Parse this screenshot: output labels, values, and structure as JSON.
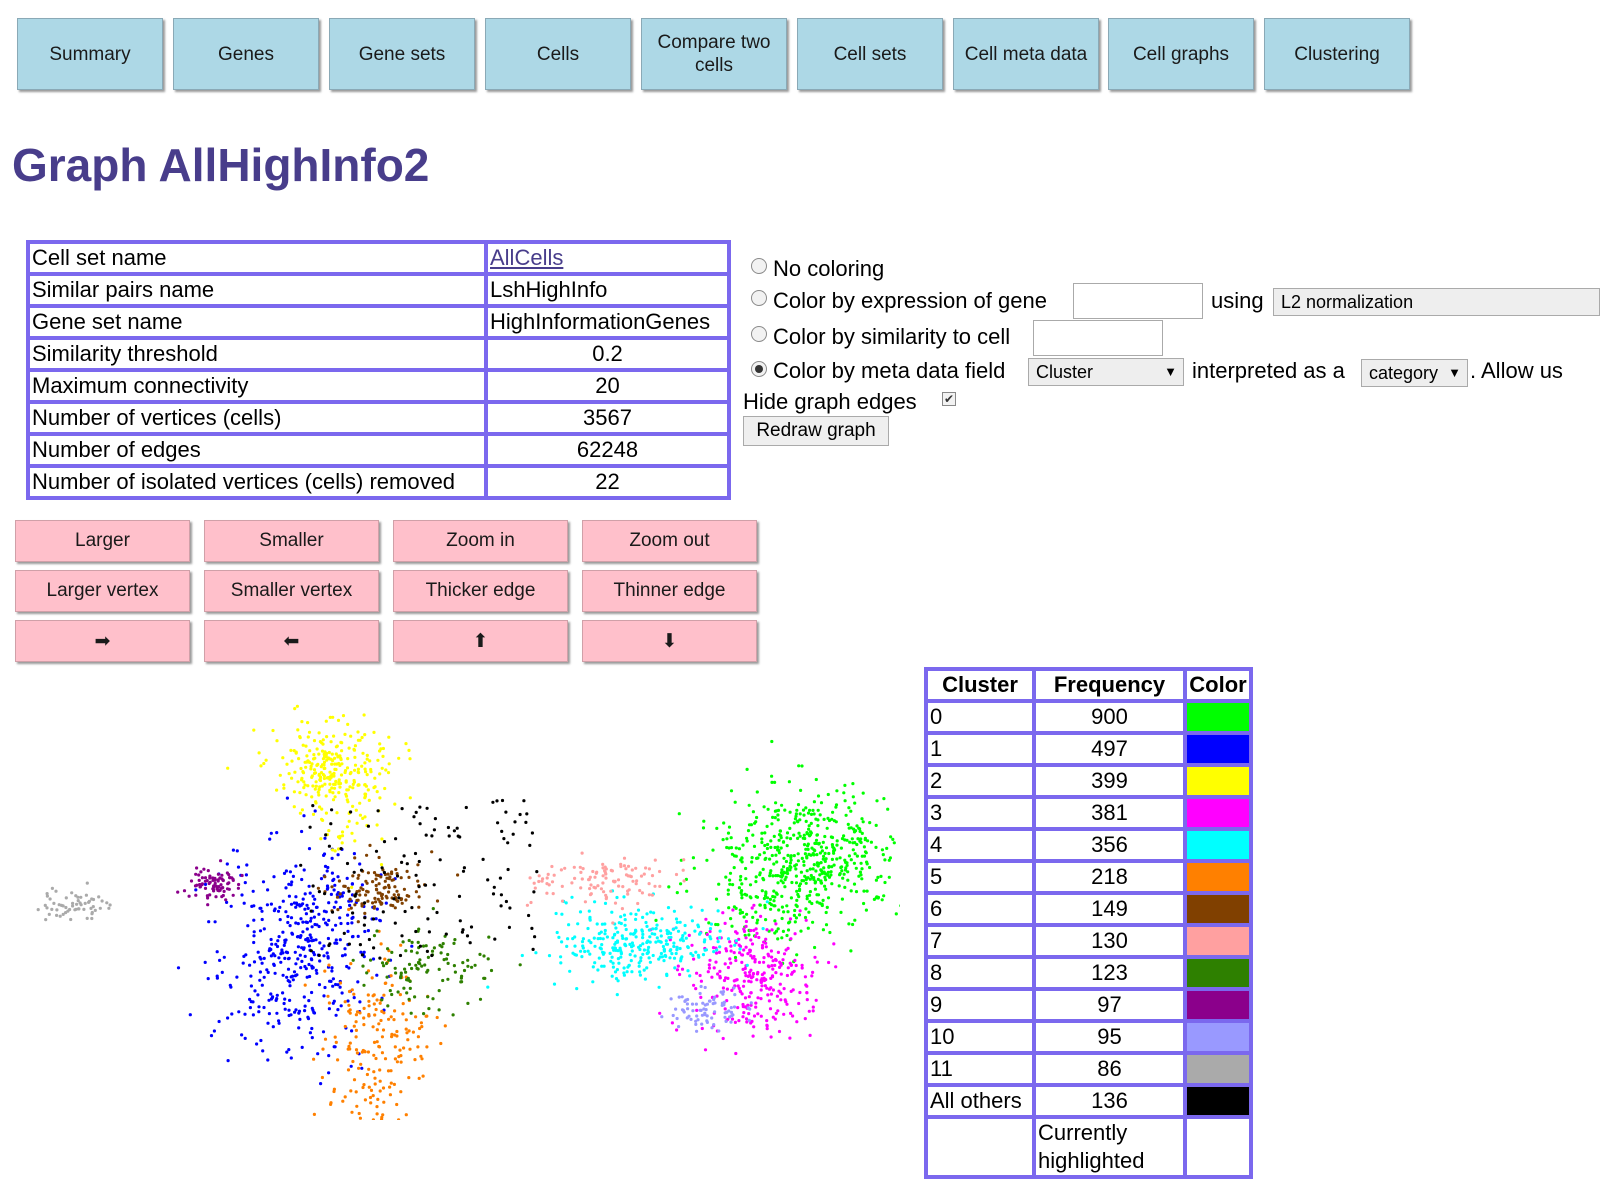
{
  "nav": [
    {
      "label": "Summary"
    },
    {
      "label": "Genes"
    },
    {
      "label": "Gene sets"
    },
    {
      "label": "Cells"
    },
    {
      "label": "Compare two cells"
    },
    {
      "label": "Cell sets"
    },
    {
      "label": "Cell meta data"
    },
    {
      "label": "Cell graphs"
    },
    {
      "label": "Clustering"
    }
  ],
  "page_title": "Graph AllHighInfo2",
  "info": [
    {
      "label": "Cell set name",
      "value": "AllCells",
      "link": true
    },
    {
      "label": "Similar pairs name",
      "value": "LshHighInfo"
    },
    {
      "label": "Gene set name",
      "value": "HighInformationGenes"
    },
    {
      "label": "Similarity threshold",
      "value": "0.2"
    },
    {
      "label": "Maximum connectivity",
      "value": "20"
    },
    {
      "label": "Number of vertices (cells)",
      "value": "3567"
    },
    {
      "label": "Number of edges",
      "value": "62248"
    },
    {
      "label": "Number of isolated vertices (cells) removed",
      "value": "22"
    }
  ],
  "coloring": {
    "no_coloring": "No coloring",
    "by_gene": "Color by expression of gene",
    "using": "using",
    "normalization": "L2 normalization",
    "by_similarity": "Color by similarity to cell",
    "by_meta": "Color by meta data field",
    "meta_field": "Cluster",
    "interpreted_as": "interpreted as a",
    "interpretation": "category",
    "allow": ". Allow us",
    "selected": "by_meta",
    "hide_edges": "Hide graph edges",
    "hide_edges_checked": true,
    "redraw": "Redraw graph"
  },
  "controls": [
    {
      "label": "Larger"
    },
    {
      "label": "Smaller"
    },
    {
      "label": "Zoom in"
    },
    {
      "label": "Zoom out"
    },
    {
      "label": "Larger vertex"
    },
    {
      "label": "Smaller vertex"
    },
    {
      "label": "Thicker edge"
    },
    {
      "label": "Thinner edge"
    },
    {
      "label": "➡",
      "icon": "right-arrow-icon"
    },
    {
      "label": "⬅",
      "icon": "left-arrow-icon"
    },
    {
      "label": "⬆",
      "icon": "up-arrow-icon"
    },
    {
      "label": "⬇",
      "icon": "down-arrow-icon"
    }
  ],
  "cluster_table": {
    "headers": [
      "Cluster",
      "Frequency",
      "Color"
    ],
    "rows": [
      {
        "cluster": "0",
        "frequency": "900",
        "color": "#00ff00"
      },
      {
        "cluster": "1",
        "frequency": "497",
        "color": "#0000ff"
      },
      {
        "cluster": "2",
        "frequency": "399",
        "color": "#ffff00"
      },
      {
        "cluster": "3",
        "frequency": "381",
        "color": "#ff00ff"
      },
      {
        "cluster": "4",
        "frequency": "356",
        "color": "#00ffff"
      },
      {
        "cluster": "5",
        "frequency": "218",
        "color": "#ff8000"
      },
      {
        "cluster": "6",
        "frequency": "149",
        "color": "#804000"
      },
      {
        "cluster": "7",
        "frequency": "130",
        "color": "#ffa0a0"
      },
      {
        "cluster": "8",
        "frequency": "123",
        "color": "#2e8000"
      },
      {
        "cluster": "9",
        "frequency": "97",
        "color": "#8b008b"
      },
      {
        "cluster": "10",
        "frequency": "95",
        "color": "#9999ff"
      },
      {
        "cluster": "11",
        "frequency": "86",
        "color": "#aaaaaa"
      },
      {
        "cluster": "All others",
        "frequency": "136",
        "color": "#000000"
      }
    ],
    "footer": "Currently highlighted"
  },
  "colors": {
    "nav_bg": "#add8e6",
    "title": "#483d8b",
    "table_border": "#7b68ee",
    "control_bg": "#ffc0cb"
  }
}
